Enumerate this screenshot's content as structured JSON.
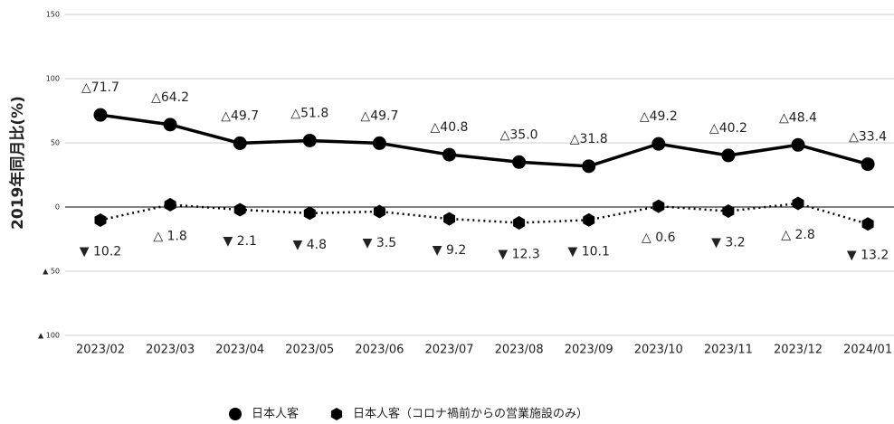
{
  "chart_data": {
    "type": "line",
    "y_label": "2019年同月比(%)",
    "categories": [
      "2023/02",
      "2023/03",
      "2023/04",
      "2023/05",
      "2023/06",
      "2023/07",
      "2023/08",
      "2023/09",
      "2023/10",
      "2023/11",
      "2023/12",
      "2024/01"
    ],
    "series": [
      {
        "name": "日本人客",
        "color": "#000000",
        "marker": "circle",
        "dash": "solid",
        "values": [
          71.7,
          64.2,
          49.7,
          51.8,
          49.7,
          40.8,
          35.0,
          31.8,
          49.2,
          40.2,
          48.4,
          33.4
        ],
        "value_labels": [
          "△71.7",
          "△64.2",
          "△49.7",
          "△51.8",
          "△49.7",
          "△40.8",
          "△35.0",
          "△31.8",
          "△49.2",
          "△40.2",
          "△48.4",
          "△33.4"
        ]
      },
      {
        "name": "日本人客（コロナ禍前からの営業施設のみ）",
        "color": "#000000",
        "marker": "hexagon",
        "dash": "dotted",
        "values": [
          -10.2,
          1.8,
          -2.1,
          -4.8,
          -3.5,
          -9.2,
          -12.3,
          -10.1,
          0.6,
          -3.2,
          2.8,
          -13.2
        ],
        "value_labels": [
          "▼ 10.2",
          "△ 1.8",
          "▼ 2.1",
          "▼ 4.8",
          "▼ 3.5",
          "▼ 9.2",
          "▼ 12.3",
          "▼ 10.1",
          "△ 0.6",
          "▼ 3.2",
          "△ 2.8",
          "▼ 13.2"
        ]
      }
    ],
    "ylim": [
      -100,
      150
    ],
    "yticks": [
      150,
      100,
      50,
      0,
      {
        "value": -50,
        "label": "▲ 50"
      },
      {
        "value": -100,
        "label": "▲ 100"
      }
    ],
    "grid": true
  }
}
